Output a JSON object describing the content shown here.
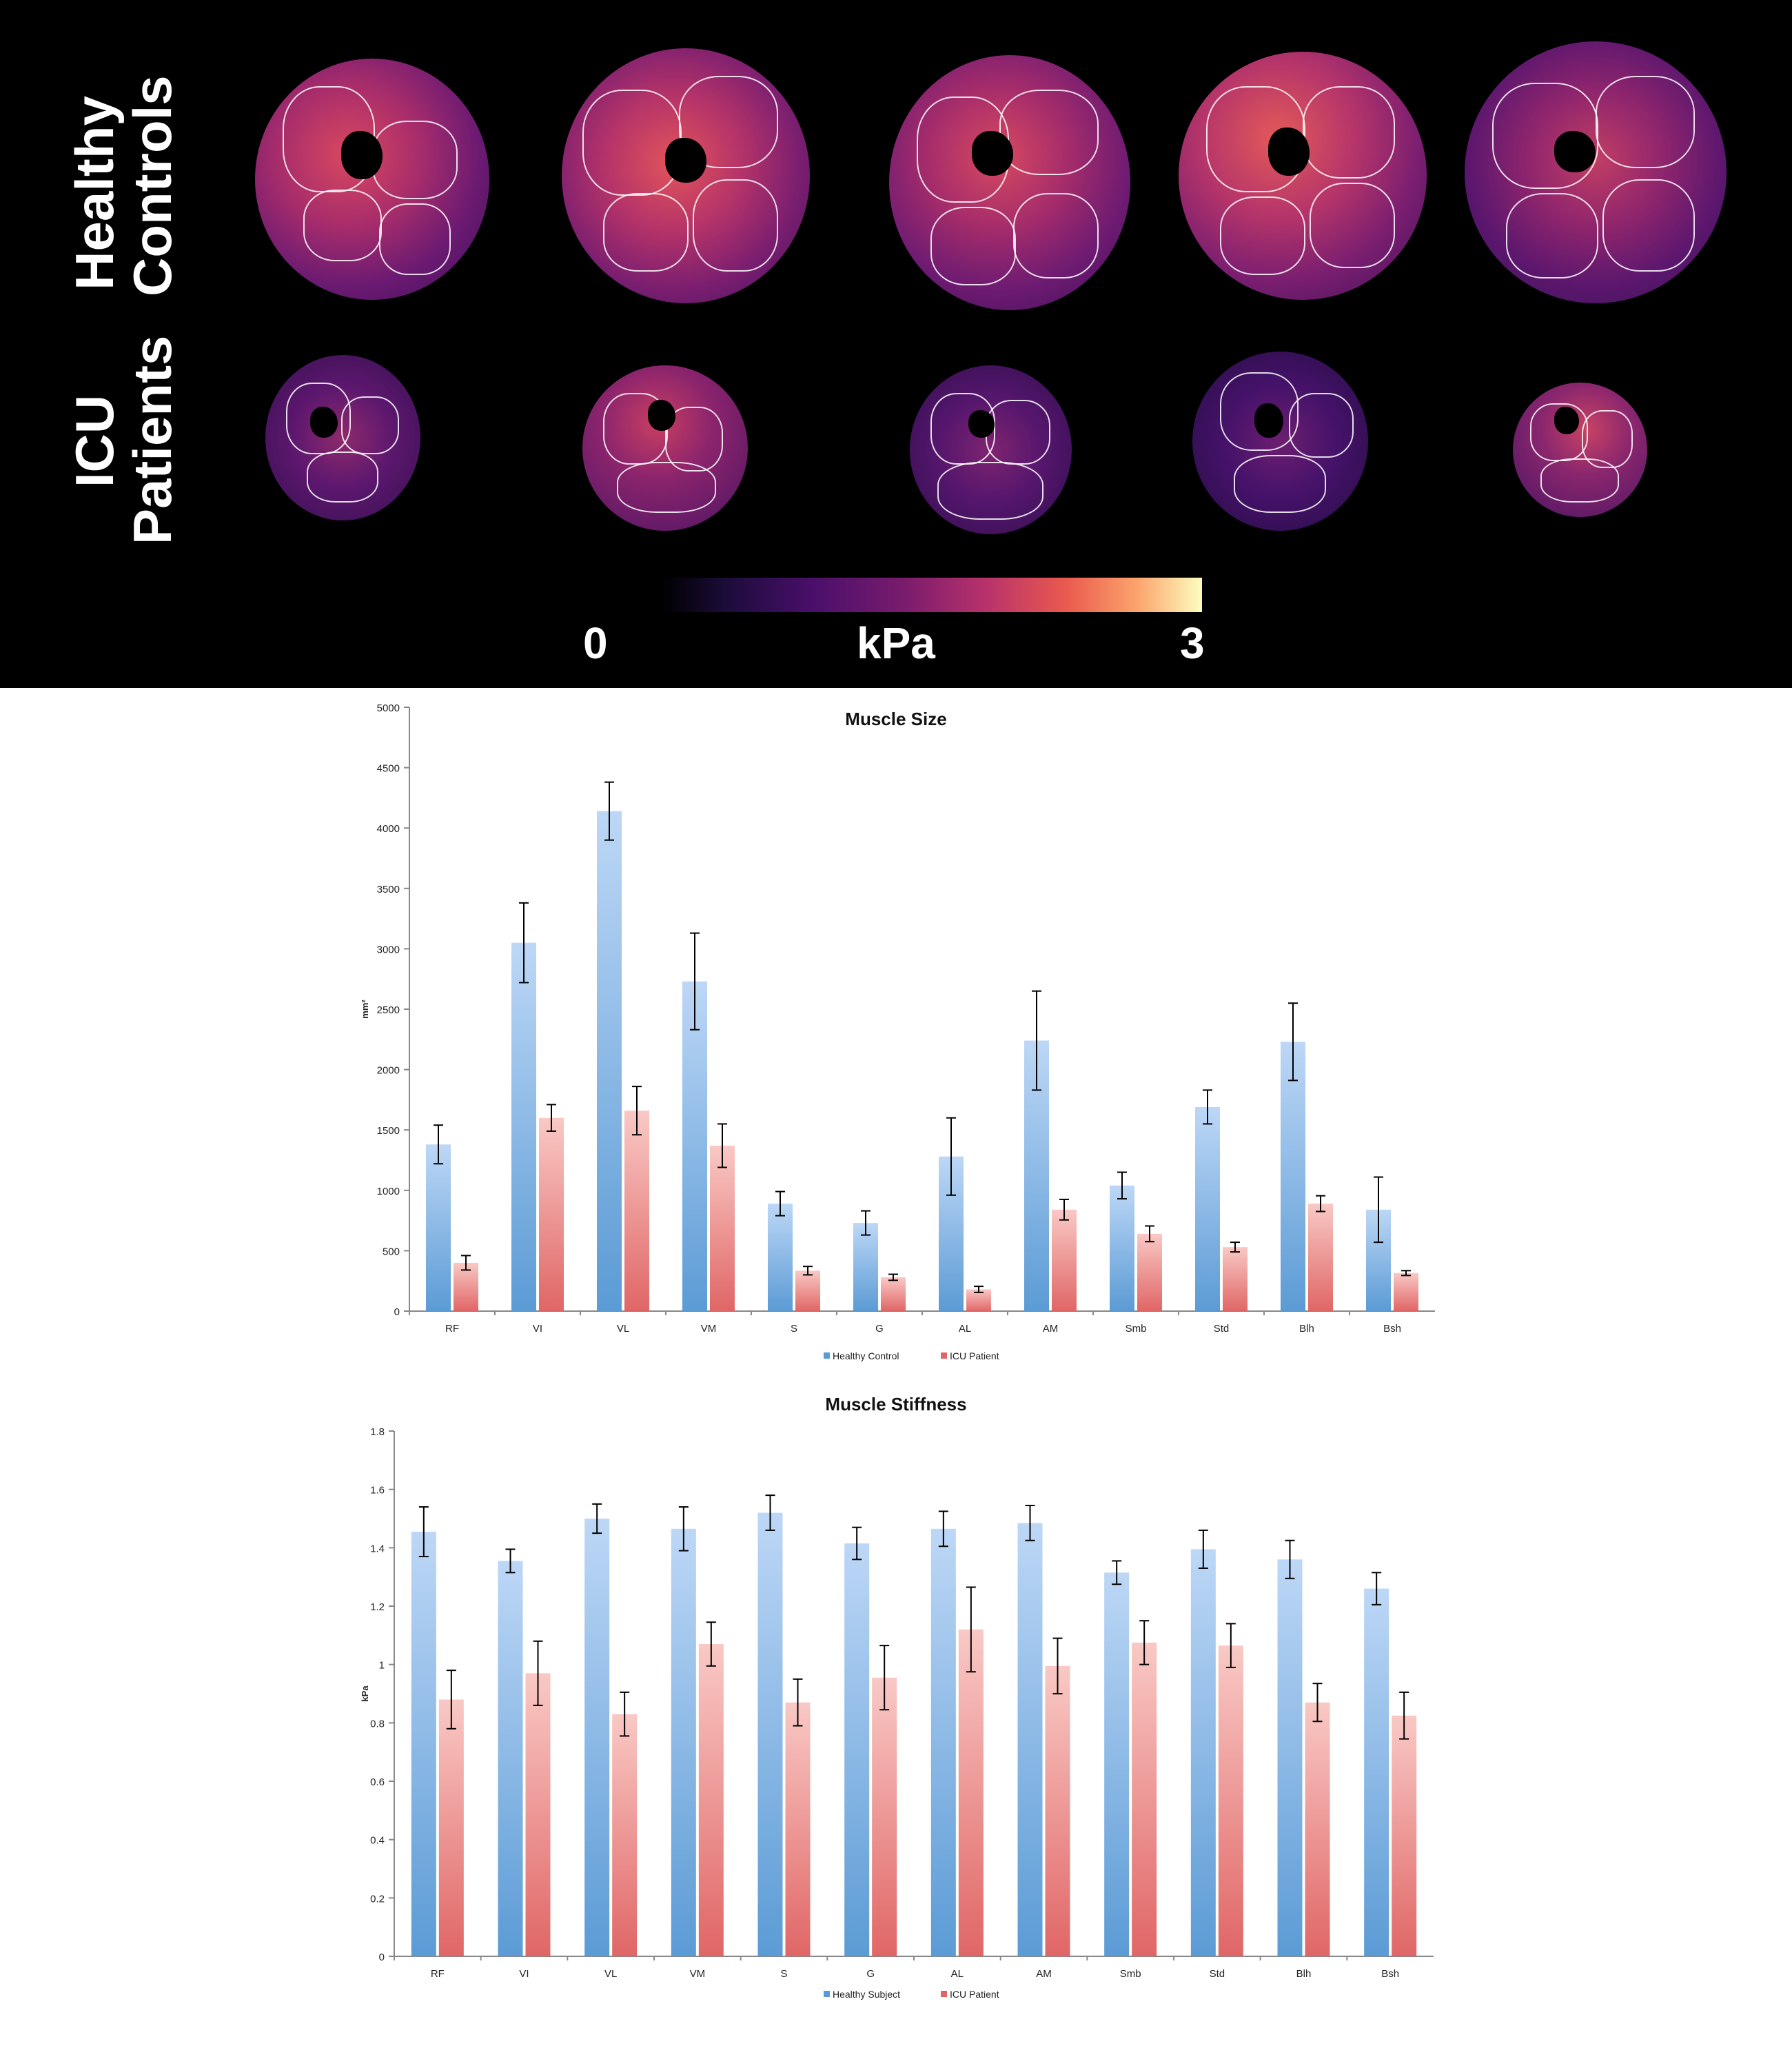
{
  "mre_panel": {
    "row_labels": [
      "Healthy\nControls",
      "ICU\nPatients"
    ],
    "colorbar": {
      "min_label": "0",
      "unit_label": "kPa",
      "max_label": "3"
    }
  },
  "chart_data": [
    {
      "type": "bar",
      "title": "Muscle Size",
      "xlabel": "",
      "ylabel": "mm²",
      "ylim": [
        0,
        5000
      ],
      "yticks": [
        0,
        500,
        1000,
        1500,
        2000,
        2500,
        3000,
        3500,
        4000,
        4500,
        5000
      ],
      "categories": [
        "RF",
        "VI",
        "VL",
        "VM",
        "S",
        "G",
        "AL",
        "AM",
        "Smb",
        "Std",
        "Blh",
        "Bsh"
      ],
      "series": [
        {
          "name": "Healthy Control",
          "color": "#5b9bd5",
          "values": [
            1380,
            3050,
            4140,
            2730,
            890,
            730,
            1280,
            2240,
            1040,
            1690,
            2230,
            840
          ],
          "errors": [
            160,
            330,
            240,
            400,
            100,
            100,
            320,
            410,
            110,
            140,
            320,
            270
          ]
        },
        {
          "name": "ICU Patient",
          "color": "#e06666",
          "values": [
            400,
            1600,
            1660,
            1370,
            335,
            280,
            180,
            840,
            640,
            530,
            890,
            315
          ],
          "errors": [
            60,
            110,
            200,
            180,
            35,
            25,
            25,
            85,
            65,
            40,
            65,
            20
          ]
        }
      ]
    },
    {
      "type": "bar",
      "title": "Muscle Stiffness",
      "xlabel": "",
      "ylabel": "kPa",
      "ylim": [
        0,
        1.8
      ],
      "yticks": [
        0,
        0.2,
        0.4,
        0.6,
        0.8,
        1,
        1.2,
        1.4,
        1.6,
        1.8
      ],
      "categories": [
        "RF",
        "VI",
        "VL",
        "VM",
        "S",
        "G",
        "AL",
        "AM",
        "Smb",
        "Std",
        "Blh",
        "Bsh"
      ],
      "series": [
        {
          "name": "Healthy Subject",
          "color": "#5b9bd5",
          "values": [
            1.455,
            1.355,
            1.5,
            1.465,
            1.52,
            1.415,
            1.465,
            1.485,
            1.315,
            1.395,
            1.36,
            1.26
          ],
          "errors": [
            0.085,
            0.04,
            0.05,
            0.075,
            0.06,
            0.055,
            0.06,
            0.06,
            0.04,
            0.065,
            0.065,
            0.055
          ]
        },
        {
          "name": "ICU Patient",
          "color": "#e06666",
          "values": [
            0.88,
            0.97,
            0.83,
            1.07,
            0.87,
            0.955,
            1.12,
            0.995,
            1.075,
            1.065,
            0.87,
            0.825
          ],
          "errors": [
            0.1,
            0.11,
            0.075,
            0.075,
            0.08,
            0.11,
            0.145,
            0.095,
            0.075,
            0.075,
            0.065,
            0.08
          ]
        }
      ]
    }
  ]
}
